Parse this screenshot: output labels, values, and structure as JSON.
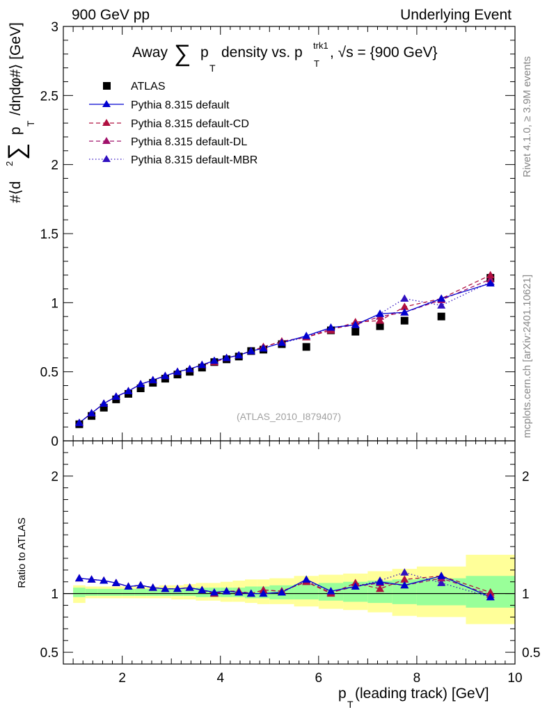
{
  "header": {
    "left_label": "900 GeV pp",
    "right_label": "Underlying Event"
  },
  "side_labels": {
    "rivet": "Rivet 4.1.0, ≥ 3.9M events",
    "mcplots": "mcplots.cern.ch [arXiv:2401.10621]"
  },
  "watermark": "(ATLAS_2010_I879407)",
  "colors": {
    "atlas": "#000000",
    "default": "#0000d0",
    "cd": "#b01040",
    "dl": "#a0106a",
    "mbr": "#3010c0",
    "band_inner": "#99ff99",
    "band_outer": "#ffff99"
  },
  "chart_data": [
    {
      "type": "scatter",
      "title": "Away Σp_T density vs. p_T^trk1, √s = {900 GeV}",
      "title_parts": {
        "pre": "Away",
        "sum": "∑",
        "p": "p",
        "sub_T": "T",
        "mid": "density vs. p",
        "sup_trk1": "trk1",
        "sub_T2": "T",
        "post": ", √s = {900 GeV}"
      },
      "ylabel": "#⟨d² ∑ p_T /dηdφ#⟩ [GeV]",
      "ylabel_parts": {
        "open": "#⟨d",
        "sup2": "2",
        "sum": "∑",
        "p": "p",
        "sub_T": "T",
        "close": "/dηdφ#⟩ [GeV]"
      },
      "xlim": [
        0.8,
        10.0
      ],
      "ylim": [
        0,
        3
      ],
      "yticks": [
        0,
        0.5,
        1,
        1.5,
        2,
        2.5,
        3
      ],
      "ytick_labels": [
        "0",
        "0.5",
        "1",
        "1.5",
        "2",
        "2.5",
        "3"
      ],
      "x": [
        1.125,
        1.375,
        1.625,
        1.875,
        2.125,
        2.375,
        2.625,
        2.875,
        3.125,
        3.375,
        3.625,
        3.875,
        4.125,
        4.375,
        4.625,
        4.875,
        5.25,
        5.75,
        6.25,
        6.75,
        7.25,
        7.75,
        8.5,
        9.5
      ],
      "legend_position": "top-left",
      "series": [
        {
          "name": "ATLAS",
          "marker": "square",
          "line": "none",
          "values": [
            0.12,
            0.18,
            0.24,
            0.3,
            0.34,
            0.38,
            0.42,
            0.45,
            0.48,
            0.5,
            0.53,
            0.57,
            0.59,
            0.61,
            0.65,
            0.66,
            0.7,
            0.68,
            0.8,
            0.79,
            0.83,
            0.87,
            0.9,
            1.18
          ]
        },
        {
          "name": "Pythia 8.315 default",
          "marker": "triangle",
          "line": "solid",
          "values": [
            0.13,
            0.2,
            0.27,
            0.32,
            0.36,
            0.41,
            0.44,
            0.47,
            0.5,
            0.52,
            0.55,
            0.58,
            0.6,
            0.62,
            0.65,
            0.67,
            0.71,
            0.76,
            0.82,
            0.84,
            0.92,
            0.93,
            1.03,
            1.14
          ]
        },
        {
          "name": "Pythia 8.315 default-CD",
          "marker": "triangle",
          "line": "dashed",
          "values": [
            0.13,
            0.2,
            0.27,
            0.32,
            0.36,
            0.41,
            0.44,
            0.47,
            0.5,
            0.52,
            0.55,
            0.57,
            0.6,
            0.62,
            0.65,
            0.68,
            0.72,
            0.75,
            0.8,
            0.86,
            0.87,
            0.97,
            1.03,
            1.2
          ]
        },
        {
          "name": "Pythia 8.315 default-DL",
          "marker": "triangle",
          "line": "dashed",
          "values": [
            0.13,
            0.2,
            0.27,
            0.32,
            0.36,
            0.41,
            0.44,
            0.47,
            0.5,
            0.52,
            0.55,
            0.57,
            0.6,
            0.62,
            0.65,
            0.68,
            0.72,
            0.75,
            0.81,
            0.84,
            0.9,
            0.93,
            1.02,
            1.17
          ]
        },
        {
          "name": "Pythia 8.315 default-MBR",
          "marker": "triangle",
          "line": "dotted",
          "values": [
            0.13,
            0.2,
            0.27,
            0.32,
            0.36,
            0.41,
            0.44,
            0.47,
            0.5,
            0.52,
            0.55,
            0.58,
            0.6,
            0.62,
            0.65,
            0.67,
            0.71,
            0.75,
            0.82,
            0.84,
            0.92,
            1.03,
            0.98,
            1.15
          ]
        }
      ]
    },
    {
      "type": "scatter",
      "title": "",
      "ylabel": "Ratio to ATLAS",
      "xlabel": "p_T (leading track) [GeV]",
      "xlabel_parts": {
        "p": "p",
        "sub_T": "T",
        "rest": " (leading track) [GeV]"
      },
      "xlim": [
        0.8,
        10.0
      ],
      "ylim": [
        0.4,
        2.3
      ],
      "xticks": [
        2,
        4,
        6,
        8,
        10
      ],
      "xtick_labels": [
        "2",
        "4",
        "6",
        "8",
        "10"
      ],
      "yticks": [
        0.5,
        1,
        2
      ],
      "ytick_labels": [
        "0.5",
        "1",
        "2"
      ],
      "x": [
        1.125,
        1.375,
        1.625,
        1.875,
        2.125,
        2.375,
        2.625,
        2.875,
        3.125,
        3.375,
        3.625,
        3.875,
        4.125,
        4.375,
        4.625,
        4.875,
        5.25,
        5.75,
        6.25,
        6.75,
        7.25,
        7.75,
        8.5,
        9.5
      ],
      "bands": {
        "edges": [
          1.0,
          1.25,
          1.5,
          1.75,
          2.0,
          2.25,
          2.5,
          2.75,
          3.0,
          3.25,
          3.5,
          3.75,
          4.0,
          4.25,
          4.5,
          4.75,
          5.0,
          5.5,
          6.0,
          6.5,
          7.0,
          7.5,
          8.0,
          9.0,
          10.0
        ],
        "inner_lo": [
          0.97,
          0.98,
          0.98,
          0.98,
          0.98,
          0.98,
          0.98,
          0.98,
          0.98,
          0.98,
          0.97,
          0.97,
          0.97,
          0.97,
          0.96,
          0.96,
          0.95,
          0.95,
          0.94,
          0.93,
          0.92,
          0.91,
          0.9,
          0.88
        ],
        "inner_hi": [
          1.05,
          1.04,
          1.04,
          1.04,
          1.04,
          1.04,
          1.04,
          1.04,
          1.04,
          1.04,
          1.05,
          1.05,
          1.05,
          1.05,
          1.06,
          1.06,
          1.07,
          1.08,
          1.09,
          1.1,
          1.11,
          1.12,
          1.13,
          1.15
        ],
        "outer_lo": [
          0.92,
          0.96,
          0.96,
          0.96,
          0.96,
          0.96,
          0.96,
          0.96,
          0.95,
          0.95,
          0.94,
          0.94,
          0.93,
          0.93,
          0.92,
          0.91,
          0.91,
          0.89,
          0.87,
          0.86,
          0.84,
          0.81,
          0.8,
          0.74
        ],
        "outer_hi": [
          1.07,
          1.06,
          1.06,
          1.06,
          1.06,
          1.06,
          1.06,
          1.07,
          1.07,
          1.08,
          1.09,
          1.09,
          1.1,
          1.11,
          1.12,
          1.12,
          1.13,
          1.15,
          1.16,
          1.17,
          1.19,
          1.21,
          1.23,
          1.33
        ]
      },
      "series": [
        {
          "name": "Pythia 8.315 default",
          "values": [
            1.13,
            1.12,
            1.11,
            1.09,
            1.06,
            1.07,
            1.05,
            1.04,
            1.04,
            1.05,
            1.03,
            1.01,
            1.02,
            1.01,
            1.0,
            1.0,
            1.01,
            1.12,
            1.02,
            1.06,
            1.1,
            1.07,
            1.15,
            0.97
          ]
        },
        {
          "name": "Pythia 8.315 default-CD",
          "values": [
            1.13,
            1.12,
            1.11,
            1.09,
            1.06,
            1.07,
            1.05,
            1.04,
            1.04,
            1.05,
            1.03,
            1.0,
            1.02,
            1.02,
            1.0,
            1.03,
            1.02,
            1.1,
            1.0,
            1.09,
            1.04,
            1.12,
            1.15,
            1.01
          ]
        },
        {
          "name": "Pythia 8.315 default-DL",
          "values": [
            1.13,
            1.12,
            1.11,
            1.09,
            1.06,
            1.07,
            1.05,
            1.04,
            1.04,
            1.05,
            1.03,
            1.0,
            1.02,
            1.02,
            1.0,
            1.03,
            1.02,
            1.1,
            1.01,
            1.06,
            1.09,
            1.07,
            1.13,
            0.99
          ]
        },
        {
          "name": "Pythia 8.315 default-MBR",
          "values": [
            1.13,
            1.12,
            1.11,
            1.09,
            1.06,
            1.07,
            1.05,
            1.04,
            1.04,
            1.05,
            1.03,
            1.01,
            1.02,
            1.01,
            1.0,
            1.0,
            1.01,
            1.11,
            1.02,
            1.06,
            1.11,
            1.18,
            1.09,
            0.97
          ]
        }
      ]
    }
  ]
}
